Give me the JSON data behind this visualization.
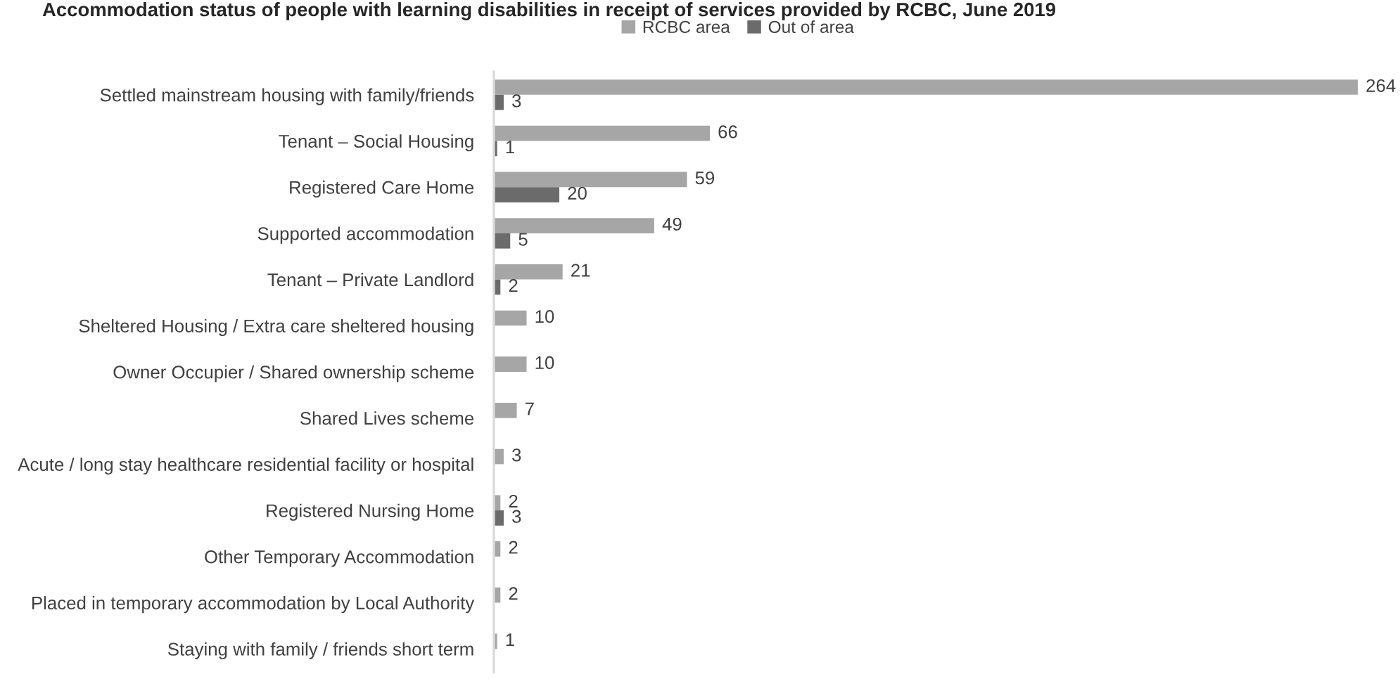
{
  "chart_data": {
    "type": "bar",
    "orientation": "horizontal",
    "title": "Accommodation status of people with learning disabilities in receipt of services provided by RCBC, June 2019",
    "categories": [
      "Settled mainstream housing with family/friends",
      "Tenant – Social Housing",
      "Registered Care Home",
      "Supported accommodation",
      "Tenant – Private Landlord",
      "Sheltered Housing / Extra care sheltered housing",
      "Owner Occupier / Shared ownership scheme",
      "Shared Lives scheme",
      "Acute / long stay healthcare residential facility or hospital",
      "Registered Nursing Home",
      "Other Temporary Accommodation",
      "Placed in temporary accommodation by Local Authority",
      "Staying with family / friends short term"
    ],
    "series": [
      {
        "name": "RCBC area",
        "color": "#a6a6a6",
        "values": [
          264,
          66,
          59,
          49,
          21,
          10,
          10,
          7,
          3,
          2,
          2,
          2,
          1
        ]
      },
      {
        "name": "Out of area",
        "color": "#6b6b6b",
        "values": [
          3,
          1,
          20,
          5,
          2,
          null,
          null,
          null,
          null,
          3,
          null,
          null,
          null
        ]
      }
    ],
    "tick_labels": "y",
    "data_labels": true,
    "legend": "top",
    "grid": false
  }
}
